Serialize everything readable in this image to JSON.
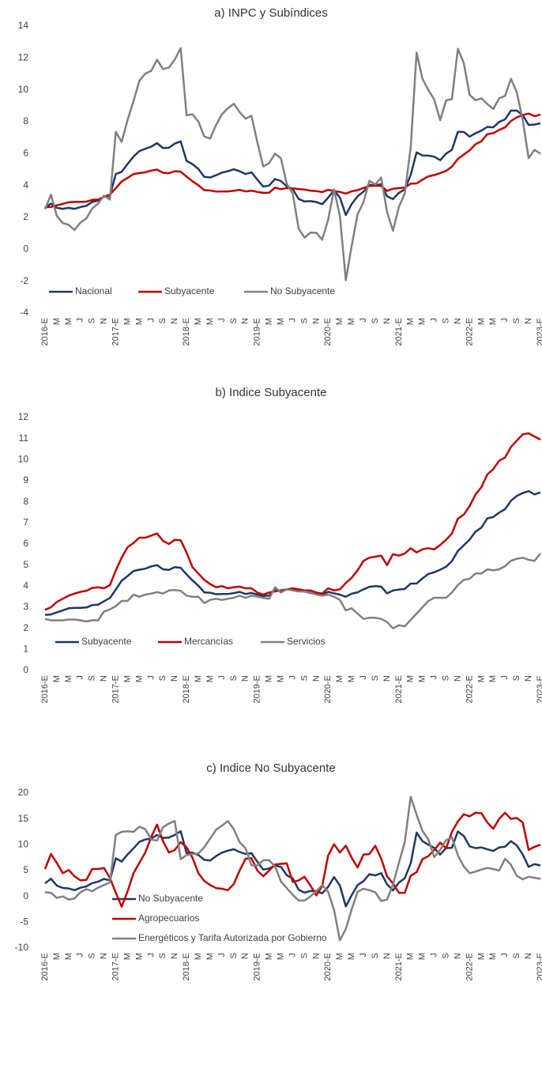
{
  "chart_data": [
    {
      "type": "line",
      "title": "a) INPC y Subíndices",
      "categories": [
        "2016-E",
        null,
        "M",
        null,
        "M",
        null,
        "J",
        null,
        "S",
        null,
        "N",
        null,
        "2017-E",
        null,
        "M",
        null,
        "M",
        null,
        "J",
        null,
        "S",
        null,
        "N",
        null,
        "2018-E",
        null,
        "M",
        null,
        "M",
        null,
        "J",
        null,
        "S",
        null,
        "N",
        null,
        "2019-E",
        null,
        "M",
        null,
        "M",
        null,
        "J",
        null,
        "S",
        null,
        "N",
        null,
        "2020-E",
        null,
        "M",
        null,
        "M",
        null,
        "J",
        null,
        "S",
        null,
        "N",
        null,
        "2021-E",
        null,
        "M",
        null,
        "M",
        null,
        "J",
        null,
        "S",
        null,
        "N",
        null,
        "2022-E",
        null,
        "M",
        null,
        "M",
        null,
        "J",
        null,
        "S",
        null,
        "N",
        null,
        "2023-E"
      ],
      "ylim": [
        -4,
        14
      ],
      "yticks": [
        -4,
        -2,
        0,
        2,
        4,
        6,
        8,
        10,
        12,
        14
      ],
      "legend": "lower left",
      "series": [
        {
          "name": "Nacional",
          "color": "#1f3864",
          "values": [
            2.61,
            2.87,
            2.6,
            2.54,
            2.6,
            2.54,
            2.65,
            2.73,
            2.97,
            3.06,
            3.31,
            3.36,
            4.72,
            4.86,
            5.35,
            5.82,
            6.16,
            6.31,
            6.44,
            6.66,
            6.35,
            6.37,
            6.63,
            6.77,
            5.55,
            5.34,
            5.04,
            4.55,
            4.51,
            4.65,
            4.81,
            4.9,
            5.02,
            4.9,
            4.72,
            4.83,
            4.37,
            3.94,
            4.0,
            4.41,
            4.28,
            3.95,
            3.78,
            3.16,
            3.0,
            3.02,
            2.97,
            2.83,
            3.24,
            3.7,
            3.25,
            2.15,
            2.84,
            3.33,
            3.62,
            4.05,
            4.01,
            4.09,
            3.33,
            3.15,
            3.54,
            3.76,
            4.67,
            6.08,
            5.89,
            5.88,
            5.81,
            5.59,
            6.0,
            6.24,
            7.37,
            7.36,
            7.07,
            7.28,
            7.45,
            7.68,
            7.65,
            7.99,
            8.15,
            8.7,
            8.7,
            8.41,
            7.8,
            7.82,
            7.91
          ]
        },
        {
          "name": "Subyacente",
          "color": "#c00000",
          "values": [
            2.64,
            2.66,
            2.76,
            2.85,
            2.95,
            2.97,
            2.97,
            2.99,
            3.1,
            3.12,
            3.29,
            3.44,
            3.84,
            4.26,
            4.48,
            4.72,
            4.78,
            4.83,
            4.94,
            5.0,
            4.8,
            4.77,
            4.9,
            4.87,
            4.56,
            4.27,
            4.02,
            3.71,
            3.69,
            3.62,
            3.63,
            3.63,
            3.67,
            3.73,
            3.63,
            3.68,
            3.6,
            3.54,
            3.55,
            3.87,
            3.77,
            3.85,
            3.82,
            3.78,
            3.75,
            3.68,
            3.65,
            3.59,
            3.73,
            3.66,
            3.6,
            3.5,
            3.64,
            3.71,
            3.85,
            3.97,
            4.0,
            3.98,
            3.66,
            3.8,
            3.84,
            3.87,
            4.12,
            4.13,
            4.37,
            4.58,
            4.66,
            4.78,
            4.92,
            5.19,
            5.67,
            5.94,
            6.21,
            6.59,
            6.78,
            7.22,
            7.28,
            7.49,
            7.65,
            8.05,
            8.28,
            8.42,
            8.51,
            8.35,
            8.45
          ]
        },
        {
          "name": "No Subyacente",
          "color": "#808080",
          "values": [
            2.52,
            3.43,
            2.09,
            1.65,
            1.54,
            1.21,
            1.68,
            1.94,
            2.56,
            2.87,
            3.37,
            3.12,
            7.37,
            6.74,
            8.12,
            9.3,
            10.57,
            11.02,
            11.2,
            11.89,
            11.3,
            11.4,
            11.9,
            12.62,
            8.41,
            8.47,
            8.01,
            7.08,
            6.95,
            7.8,
            8.47,
            8.85,
            9.13,
            8.6,
            8.2,
            8.37,
            6.72,
            5.2,
            5.4,
            6.0,
            5.7,
            4.1,
            3.5,
            1.3,
            0.73,
            1.05,
            1.04,
            0.6,
            1.85,
            3.76,
            2.1,
            -1.94,
            0.22,
            2.2,
            2.96,
            4.3,
            4.07,
            4.5,
            2.33,
            1.16,
            2.67,
            3.5,
            6.4,
            12.34,
            10.7,
            9.99,
            9.4,
            8.1,
            9.34,
            9.42,
            12.58,
            11.69,
            9.68,
            9.35,
            9.47,
            9.11,
            8.8,
            9.48,
            9.62,
            10.7,
            9.85,
            8.1,
            5.72,
            6.24,
            6.0
          ]
        }
      ]
    },
    {
      "type": "line",
      "title": "b) Indice Subyacente",
      "categories": [
        "2016-E",
        null,
        "M",
        null,
        "M",
        null,
        "J",
        null,
        "S",
        null,
        "N",
        null,
        "2017-E",
        null,
        "M",
        null,
        "M",
        null,
        "J",
        null,
        "S",
        null,
        "N",
        null,
        "2018-E",
        null,
        "M",
        null,
        "M",
        null,
        "J",
        null,
        "S",
        null,
        "N",
        null,
        "2019-E",
        null,
        "M",
        null,
        "M",
        null,
        "J",
        null,
        "S",
        null,
        "N",
        null,
        "2020-E",
        null,
        "M",
        null,
        "M",
        null,
        "J",
        null,
        "S",
        null,
        "N",
        null,
        "2021-E",
        null,
        "M",
        null,
        "M",
        null,
        "J",
        null,
        "S",
        null,
        "N",
        null,
        "2022-E",
        null,
        "M",
        null,
        "M",
        null,
        "J",
        null,
        "S",
        null,
        "N",
        null,
        "2023-E"
      ],
      "ylim": [
        0,
        12
      ],
      "yticks": [
        0,
        1,
        2,
        3,
        4,
        5,
        6,
        7,
        8,
        9,
        10,
        11,
        12
      ],
      "legend": "lower left",
      "series": [
        {
          "name": "Subyacente",
          "color": "#1f3864",
          "values": [
            2.64,
            2.66,
            2.76,
            2.85,
            2.95,
            2.97,
            2.97,
            2.99,
            3.1,
            3.12,
            3.29,
            3.44,
            3.84,
            4.26,
            4.48,
            4.72,
            4.78,
            4.83,
            4.94,
            5.0,
            4.8,
            4.77,
            4.9,
            4.87,
            4.56,
            4.27,
            4.02,
            3.71,
            3.69,
            3.62,
            3.63,
            3.63,
            3.67,
            3.73,
            3.63,
            3.68,
            3.6,
            3.54,
            3.55,
            3.87,
            3.77,
            3.85,
            3.82,
            3.78,
            3.75,
            3.68,
            3.65,
            3.59,
            3.73,
            3.66,
            3.6,
            3.5,
            3.64,
            3.71,
            3.85,
            3.97,
            4.0,
            3.98,
            3.66,
            3.8,
            3.84,
            3.87,
            4.12,
            4.13,
            4.37,
            4.58,
            4.66,
            4.78,
            4.92,
            5.19,
            5.67,
            5.94,
            6.21,
            6.59,
            6.78,
            7.22,
            7.28,
            7.49,
            7.65,
            8.05,
            8.28,
            8.42,
            8.51,
            8.35,
            8.45
          ]
        },
        {
          "name": "Mercancías",
          "color": "#c00000",
          "values": [
            2.88,
            3.0,
            3.25,
            3.4,
            3.55,
            3.65,
            3.73,
            3.78,
            3.92,
            3.95,
            3.9,
            4.05,
            4.75,
            5.35,
            5.85,
            6.05,
            6.3,
            6.3,
            6.4,
            6.5,
            6.15,
            6.0,
            6.2,
            6.18,
            5.6,
            4.9,
            4.6,
            4.3,
            4.1,
            3.95,
            4.0,
            3.9,
            3.95,
            3.98,
            3.9,
            3.9,
            3.7,
            3.6,
            3.7,
            3.75,
            3.8,
            3.85,
            3.9,
            3.85,
            3.8,
            3.8,
            3.7,
            3.65,
            3.9,
            3.8,
            3.85,
            4.15,
            4.4,
            4.75,
            5.2,
            5.35,
            5.4,
            5.45,
            5.0,
            5.52,
            5.45,
            5.55,
            5.8,
            5.6,
            5.75,
            5.8,
            5.75,
            5.95,
            6.2,
            6.5,
            7.2,
            7.4,
            7.8,
            8.35,
            8.7,
            9.3,
            9.55,
            9.95,
            10.1,
            10.6,
            10.9,
            11.2,
            11.25,
            11.1,
            10.95
          ]
        },
        {
          "name": "Servicios",
          "color": "#808080",
          "values": [
            2.45,
            2.38,
            2.38,
            2.38,
            2.42,
            2.42,
            2.38,
            2.33,
            2.38,
            2.38,
            2.8,
            2.9,
            3.05,
            3.3,
            3.3,
            3.6,
            3.5,
            3.6,
            3.65,
            3.72,
            3.65,
            3.8,
            3.82,
            3.78,
            3.55,
            3.5,
            3.5,
            3.2,
            3.35,
            3.4,
            3.35,
            3.4,
            3.45,
            3.55,
            3.45,
            3.55,
            3.5,
            3.45,
            3.4,
            3.95,
            3.7,
            3.85,
            3.8,
            3.75,
            3.75,
            3.7,
            3.6,
            3.55,
            3.6,
            3.5,
            3.35,
            2.85,
            2.95,
            2.7,
            2.45,
            2.5,
            2.5,
            2.45,
            2.3,
            2.0,
            2.15,
            2.1,
            2.4,
            2.7,
            3.0,
            3.3,
            3.45,
            3.45,
            3.45,
            3.7,
            4.05,
            4.3,
            4.35,
            4.6,
            4.6,
            4.8,
            4.75,
            4.8,
            4.95,
            5.2,
            5.3,
            5.35,
            5.25,
            5.2,
            5.55
          ]
        }
      ]
    },
    {
      "type": "line",
      "title": "c) Indice No Subyacente",
      "categories": [
        "2016-E",
        null,
        "M",
        null,
        "M",
        null,
        "J",
        null,
        "S",
        null,
        "N",
        null,
        "2017-E",
        null,
        "M",
        null,
        "M",
        null,
        "J",
        null,
        "S",
        null,
        "N",
        null,
        "2018-E",
        null,
        "M",
        null,
        "M",
        null,
        "J",
        null,
        "S",
        null,
        "N",
        null,
        "2019-E",
        null,
        "M",
        null,
        "M",
        null,
        "J",
        null,
        "S",
        null,
        "N",
        null,
        "2020-E",
        null,
        "M",
        null,
        "M",
        null,
        "J",
        null,
        "S",
        null,
        "N",
        null,
        "2021-E",
        null,
        "M",
        null,
        "M",
        null,
        "J",
        null,
        "S",
        null,
        "N",
        null,
        "2022-E",
        null,
        "M",
        null,
        "M",
        null,
        "J",
        null,
        "S",
        null,
        "N",
        null,
        "2023-E"
      ],
      "ylim": [
        -10,
        20
      ],
      "yticks": [
        -10,
        -5,
        0,
        5,
        10,
        15,
        20
      ],
      "legend": "lower left",
      "series": [
        {
          "name": "No Subyacente",
          "color": "#1f3864",
          "values": [
            2.52,
            3.43,
            2.09,
            1.65,
            1.54,
            1.21,
            1.68,
            1.94,
            2.56,
            2.87,
            3.37,
            3.12,
            7.37,
            6.74,
            8.12,
            9.3,
            10.57,
            11.02,
            11.2,
            11.89,
            11.3,
            11.4,
            11.9,
            12.62,
            8.41,
            8.47,
            8.01,
            7.08,
            6.95,
            7.8,
            8.47,
            8.85,
            9.13,
            8.6,
            8.2,
            8.37,
            6.72,
            5.2,
            5.4,
            6.0,
            5.7,
            4.1,
            3.5,
            1.3,
            0.73,
            1.05,
            1.04,
            0.6,
            1.85,
            3.76,
            2.1,
            -1.94,
            0.22,
            2.2,
            2.96,
            4.3,
            4.07,
            4.5,
            2.33,
            1.16,
            2.67,
            3.5,
            6.4,
            12.34,
            10.7,
            9.99,
            9.4,
            8.1,
            9.34,
            9.42,
            12.58,
            11.69,
            9.68,
            9.35,
            9.47,
            9.11,
            8.8,
            9.48,
            9.62,
            10.7,
            9.85,
            8.1,
            5.72,
            6.24,
            6.0
          ]
        },
        {
          "name": "Agropecuarios",
          "color": "#c00000",
          "values": [
            5.3,
            8.2,
            6.5,
            4.5,
            5.1,
            3.9,
            3.1,
            3.2,
            5.3,
            5.3,
            5.5,
            3.6,
            0.7,
            -2.0,
            1.0,
            4.5,
            6.5,
            8.5,
            11.5,
            13.9,
            10.7,
            8.5,
            9.0,
            10.5,
            9.5,
            7.5,
            4.5,
            3.0,
            2.2,
            1.6,
            1.5,
            1.2,
            2.4,
            5.0,
            7.3,
            7.4,
            5.0,
            3.9,
            5.0,
            6.2,
            6.3,
            6.4,
            2.8,
            3.1,
            3.8,
            2.1,
            0.2,
            2.0,
            7.9,
            10.1,
            8.5,
            9.8,
            7.5,
            5.6,
            8.1,
            8.2,
            9.8,
            7.3,
            3.9,
            2.5,
            0.7,
            0.7,
            4.0,
            4.7,
            7.2,
            7.8,
            9.0,
            10.4,
            9.3,
            12.5,
            14.5,
            15.9,
            15.5,
            16.2,
            16.1,
            14.3,
            13.1,
            15.0,
            16.2,
            15.0,
            15.2,
            14.3,
            9.0,
            9.6,
            10.0
          ]
        },
        {
          "name": "Energéticos y Tarifa Autorizada por Gobierno",
          "color": "#808080",
          "values": [
            0.8,
            0.7,
            -0.3,
            0.0,
            -0.6,
            -0.4,
            0.8,
            1.4,
            1.0,
            1.7,
            2.2,
            2.7,
            11.9,
            12.5,
            12.6,
            12.5,
            13.5,
            13.0,
            11.0,
            10.8,
            13.4,
            14.1,
            14.6,
            7.2,
            8.0,
            8.2,
            8.3,
            9.5,
            11.2,
            12.9,
            13.7,
            14.6,
            13.0,
            10.5,
            9.3,
            6.0,
            6.0,
            7.0,
            7.0,
            5.8,
            2.9,
            1.6,
            0.3,
            -0.8,
            -0.8,
            0.0,
            1.0,
            2.2,
            0.9,
            -2.6,
            -8.5,
            -6.3,
            -2.5,
            0.9,
            1.5,
            1.2,
            0.8,
            -0.9,
            -0.6,
            2.3,
            6.5,
            10.5,
            19.3,
            15.8,
            12.7,
            11.0,
            7.6,
            9.0,
            10.9,
            11.4,
            8.0,
            5.8,
            4.5,
            4.8,
            5.2,
            5.5,
            5.3,
            5.0,
            7.3,
            6.1,
            4.0,
            3.3,
            3.8,
            3.6,
            3.4
          ]
        }
      ]
    }
  ]
}
